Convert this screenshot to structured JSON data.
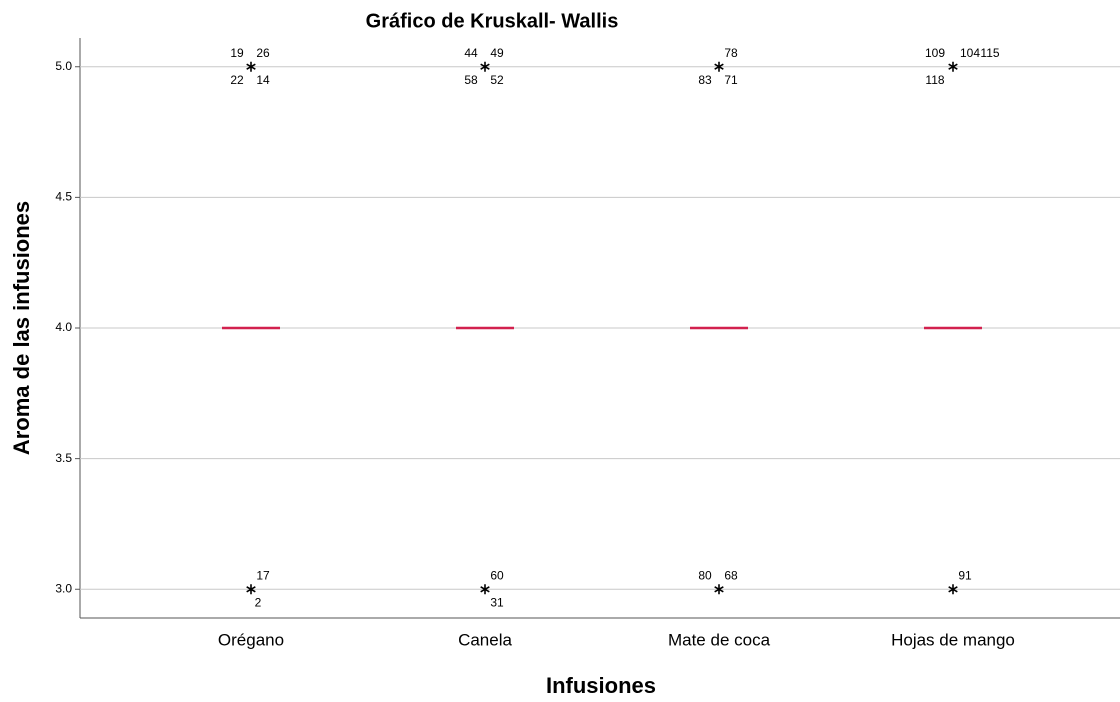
{
  "chart_data": {
    "type": "box",
    "title": "Gráfico de Kruskall- Wallis",
    "x_label": "Infusiones",
    "y_label": "Aroma de las infusiones",
    "categories": [
      "Orégano",
      "Canela",
      "Mate de coca",
      "Hojas de mango"
    ],
    "medians": [
      4,
      4,
      4,
      4
    ],
    "median_color": "#d2214e",
    "outliers": [
      [
        {
          "value": 5,
          "cases": [
            19,
            26,
            22,
            14
          ]
        },
        {
          "value": 3,
          "cases": [
            17,
            2
          ]
        }
      ],
      [
        {
          "value": 5,
          "cases": [
            44,
            49,
            58,
            52
          ]
        },
        {
          "value": 3,
          "cases": [
            60,
            31
          ]
        }
      ],
      [
        {
          "value": 5,
          "cases": [
            78,
            83,
            71
          ]
        },
        {
          "value": 3,
          "cases": [
            80,
            68
          ]
        }
      ],
      [
        {
          "value": 5,
          "cases": [
            109,
            104,
            115,
            118
          ]
        },
        {
          "value": 3,
          "cases": [
            91
          ]
        }
      ]
    ],
    "ylim": [
      2.89,
      5.11
    ],
    "yticks": [
      {
        "value": 3,
        "label": "3.0"
      },
      {
        "value": 3.5,
        "label": "3.5"
      },
      {
        "value": 4,
        "label": "4.0"
      },
      {
        "value": 4.5,
        "label": "4.5"
      },
      {
        "value": 5,
        "label": "5.0"
      }
    ],
    "grid": true
  }
}
